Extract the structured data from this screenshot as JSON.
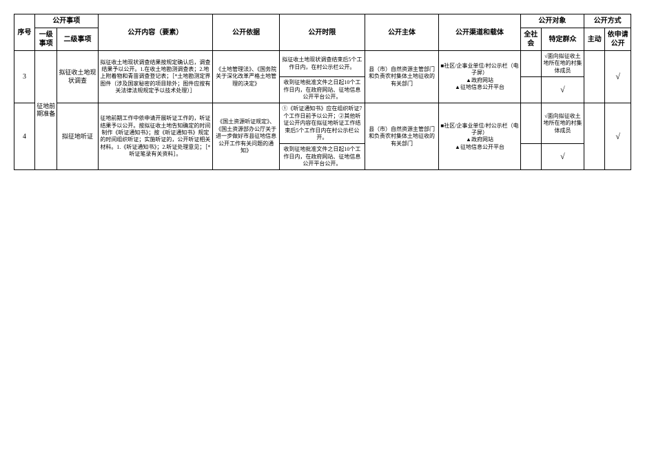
{
  "headers": {
    "seq": "序号",
    "matters": "公开事项",
    "level1": "一级事项",
    "level2": "二级事项",
    "content": "公开内容（要素）",
    "basis": "公开依据",
    "time": "公开时限",
    "subject": "公开主体",
    "channel": "公开渠道和载体",
    "target": "公开对象",
    "all_society": "全社会",
    "specific_group": "特定群众",
    "method": "公开方式",
    "active": "主动",
    "by_request": "依申请公开"
  },
  "l1_category": "征地前期准备",
  "rows": [
    {
      "seq": "3",
      "l2": "拟征收土地现状调查",
      "content": "拟征收土地现状调查结果按规定确认后，调查结果予以公开。1.在收土地勘测调查表；2.地上附着物和青苗调查登记表；［*土地勘测定界图件（涉及国家秘密的项目除外；图件应按有关法律法规规定予以技术处理）］",
      "basis": "《土地管理法》、《国务院关于深化改革严格土地管理的决定》",
      "time1": "拟征收土地现状调查结束后5个工作日内，在村公示栏公开。",
      "time2": "收到征地批准文件之日起10个工作日内，在政府网站、征地信息公开平台公开。",
      "subject": "县（市）自然资源主管部门和负责农村集体土地征收的有关部门",
      "channel": "■社区/企事业单位/村公示栏（电子屏）\n▲政府网站\n▲征地信息公开平台",
      "group1": "√面向拟征收土地所在地的村集体成员",
      "group2": "√"
    },
    {
      "seq": "4",
      "l2": "拟征地听证",
      "content": "征地前期工作中依申请开展听证工作的，听证结果予以公开。按拟征收土地告知确定的时间制作《听证通知书》；按《听证通知书》规定的时间组织听证；实施听证的，公开听证相关材料。1.《听证通知书》；2.听证处理意见；［*听证笔录有关资料］。",
      "basis": "《国土资源听证规定》、《国土资源部办公厅关于进一步做好市县征地信息公开工作有关问题的通知》",
      "time1": "①《听证通知书》应在组织听证7个工作日前予以公开；②其他听证公开内容在拟征地听证工作结束后5个工作日内在村公示栏公开。",
      "time2": "收到征地批准文件之日起10个工作日内，在政府网站、征地信息公开平台公开。",
      "subject": "县（市）自然资源主管部门和负责农村集体土地征收的有关部门",
      "channel": "■社区/企事业单位/村公示栏（电子屏）\n▲政府网站\n▲征地信息公开平台",
      "group1": "√面向拟征收土地所在地的村集体成员",
      "group2": "√"
    }
  ],
  "check": "√"
}
